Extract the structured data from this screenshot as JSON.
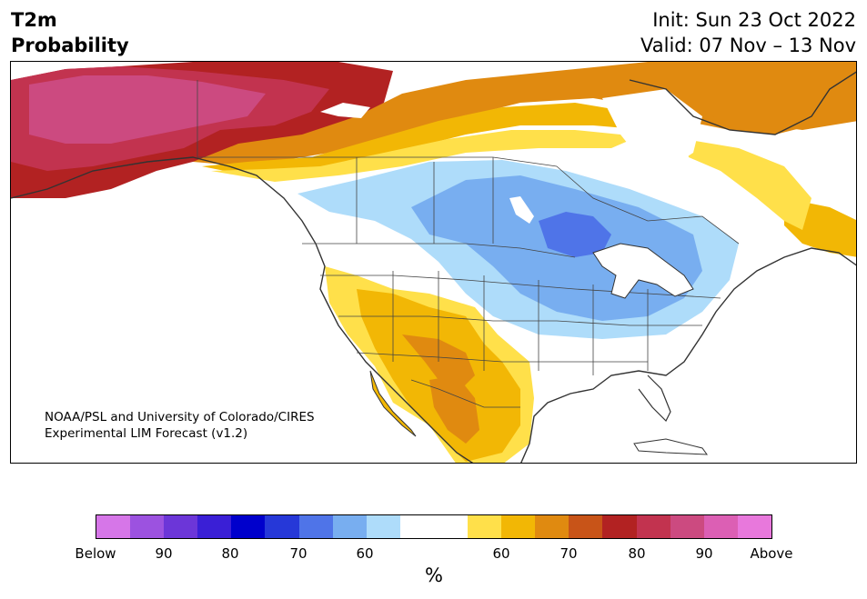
{
  "title": {
    "left_line1": "T2m",
    "left_line2": "Probability",
    "right_line1": "Init: Sun 23 Oct 2022",
    "right_line2": "Valid: 07 Nov – 13 Nov"
  },
  "credit": {
    "line1": "NOAA/PSL and University of Colorado/CIRES",
    "line2": "Experimental LIM Forecast (v1.2)"
  },
  "colorbar": {
    "colors": [
      "#d676e8",
      "#9c52e0",
      "#6c36d8",
      "#3a1fd6",
      "#0000cc",
      "#2638d8",
      "#4f74e8",
      "#78aef0",
      "#aedcfa",
      "#ffffff",
      "#ffffff",
      "#ffe04a",
      "#f2b705",
      "#e08a10",
      "#c85418",
      "#b22222",
      "#c2334f",
      "#cc4a80",
      "#dc5fb4",
      "#e878dc"
    ],
    "tick_labels": [
      "Below",
      "90",
      "80",
      "70",
      "60",
      "60",
      "70",
      "80",
      "90",
      "Above"
    ],
    "unit": "%"
  },
  "legend_palette": {
    "below_90": "#9c52e0",
    "below_70": "#2638d8",
    "below_60": "#aedcfa",
    "near_normal": "#ffffff",
    "above_60": "#ffe04a",
    "above_70": "#e08a10",
    "above_80": "#b22222",
    "above_90": "#cc4a80"
  }
}
